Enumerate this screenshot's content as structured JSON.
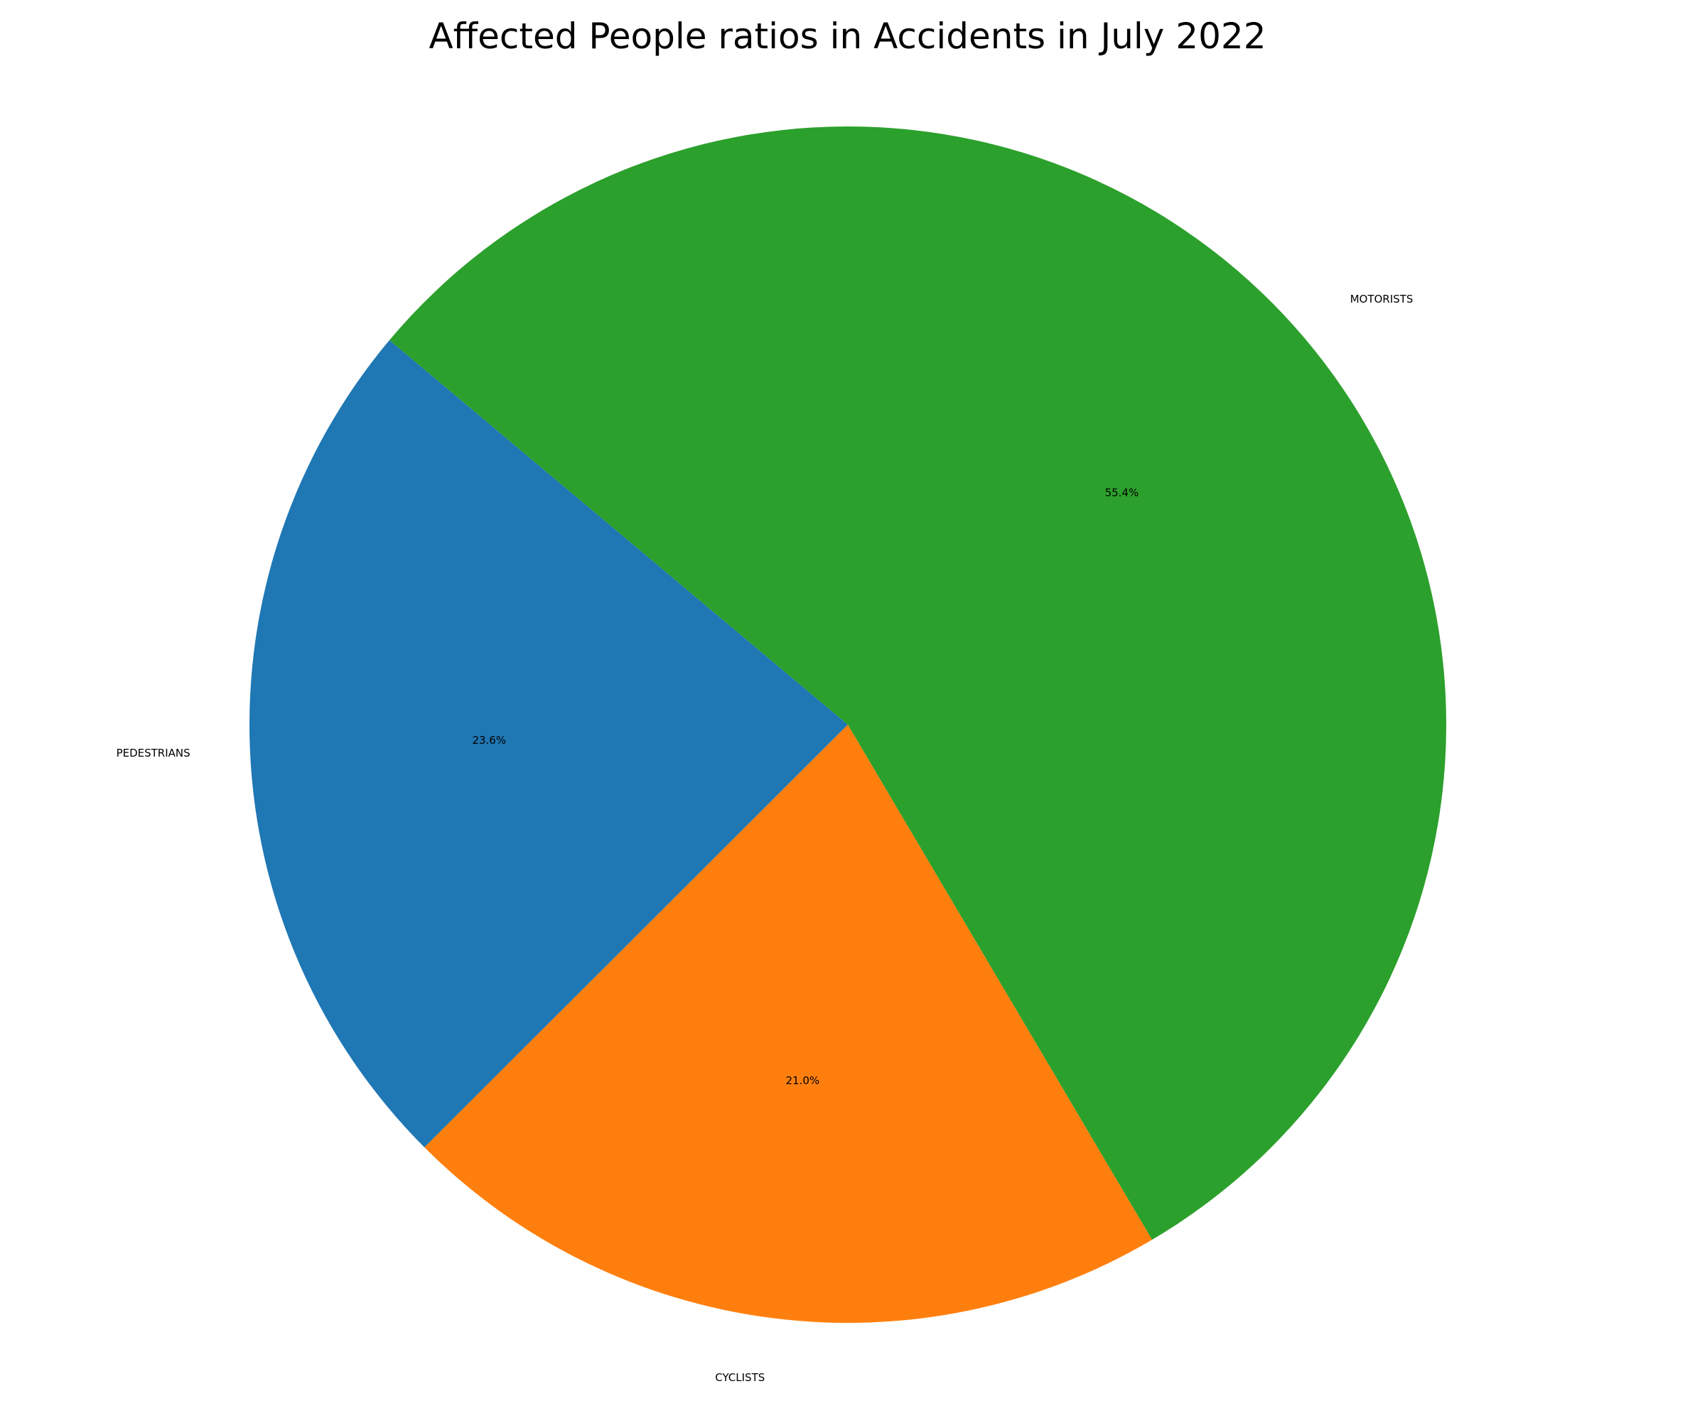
{
  "chart_data": {
    "type": "pie",
    "title": "Affected People ratios in Accidents in July 2022",
    "slices": [
      {
        "label": "PEDESTRIANS",
        "value": 23.6,
        "pct_label": "23.6%",
        "color": "#1f77b4"
      },
      {
        "label": "CYCLISTS",
        "value": 21.0,
        "pct_label": "21.0%",
        "color": "#ff7f0e"
      },
      {
        "label": "MOTORISTS",
        "value": 55.4,
        "pct_label": "55.4%",
        "color": "#2ca02c"
      }
    ],
    "start_angle_deg": 140,
    "direction": "counterclockwise",
    "legend": false
  }
}
